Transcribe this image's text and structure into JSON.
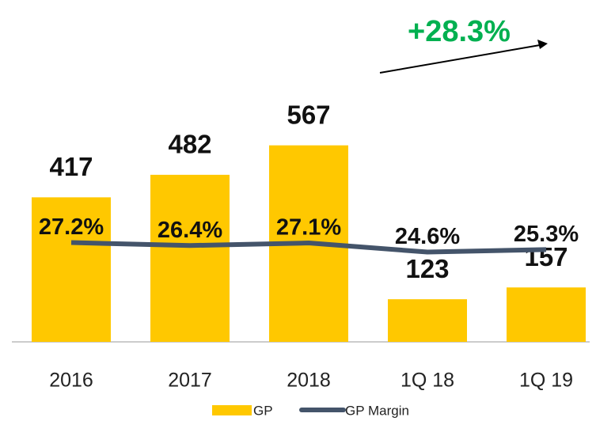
{
  "chart_data": {
    "type": "bar",
    "categories": [
      "2016",
      "2017",
      "2018",
      "1Q 18",
      "1Q 19"
    ],
    "series": [
      {
        "name": "GP",
        "color": "#FFC800",
        "values": [
          417,
          482,
          567,
          123,
          157
        ]
      },
      {
        "name": "GP Margin",
        "color": "#44546A",
        "axis": "y2",
        "type": "line",
        "values": [
          27.2,
          26.4,
          27.1,
          24.6,
          25.3
        ],
        "value_labels": [
          "27.2%",
          "26.4%",
          "27.1%",
          "24.6%",
          "25.3%"
        ]
      }
    ],
    "ylim": [
      0,
      895
    ],
    "y2lim": [
      0,
      85
    ],
    "annotations": [
      {
        "text": "+28.3%",
        "color": "#00B050"
      }
    ]
  }
}
